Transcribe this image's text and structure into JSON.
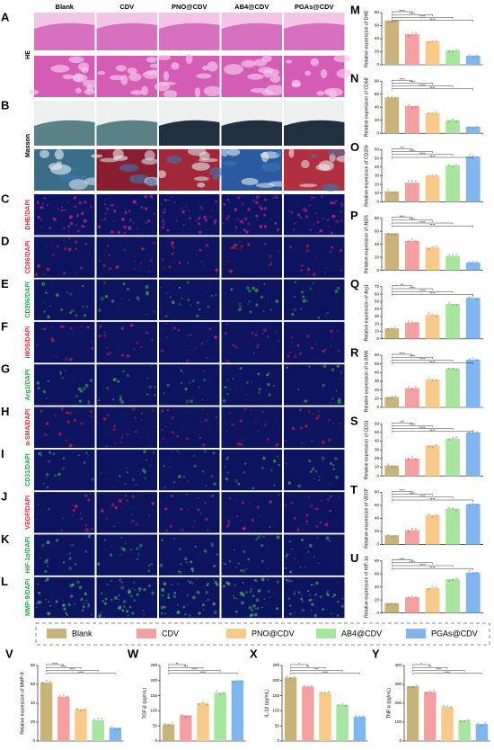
{
  "legend": [
    {
      "name": "Blank",
      "color": "#c8b47a"
    },
    {
      "name": "CDV",
      "color": "#f4a0a0"
    },
    {
      "name": "PNO@CDV",
      "color": "#f9c98a"
    },
    {
      "name": "AB4@CDV",
      "color": "#a8e6a0"
    },
    {
      "name": "PGAs@CDV",
      "color": "#7fb6f0"
    }
  ],
  "image_panel": {
    "columns": [
      "Blank",
      "CDV",
      "PNO@CDV",
      "AB4@CDV",
      "PGAs@CDV"
    ],
    "rows": [
      {
        "letter": "A",
        "label": "HE",
        "color": "#000000"
      },
      {
        "letter": "B",
        "label": "Masson",
        "color": "#000000"
      },
      {
        "letter": "C",
        "label": "DHE/DAPI",
        "color": "#e0303a"
      },
      {
        "letter": "D",
        "label": "CD86/DAPI",
        "color": "#e0303a"
      },
      {
        "letter": "E",
        "label": "CD206/DAPI",
        "color": "#2aa34a"
      },
      {
        "letter": "F",
        "label": "iNOS/DAPI",
        "color": "#e0303a"
      },
      {
        "letter": "G",
        "label": "Arg1/DAPI",
        "color": "#2aa34a"
      },
      {
        "letter": "H",
        "label": "α-SMA/DAPI",
        "color": "#e0303a"
      },
      {
        "letter": "I",
        "label": "CD31/DAPI",
        "color": "#2aa34a"
      },
      {
        "letter": "J",
        "label": "VEGF/DAPI",
        "color": "#e0303a"
      },
      {
        "letter": "K",
        "label": "HIF-1α/DAPI",
        "color": "#2aa34a"
      },
      {
        "letter": "L",
        "label": "MMP-9/DAPI",
        "color": "#2aa34a"
      }
    ]
  },
  "chart_data": [
    {
      "type": "bar",
      "label": "M",
      "ylabel": "Relative expression of DHE",
      "values": [
        68,
        47,
        36,
        22,
        14
      ],
      "ylim": [
        0,
        80
      ],
      "yticks": [
        0,
        20,
        40,
        60,
        80
      ],
      "significance": [
        "****",
        "****",
        "****",
        "****"
      ]
    },
    {
      "type": "bar",
      "label": "N",
      "ylabel": "Relative expression of CD68",
      "values": [
        55,
        42,
        31,
        20,
        10
      ],
      "ylim": [
        0,
        80
      ],
      "yticks": [
        0,
        20,
        40,
        60,
        80
      ],
      "significance": [
        "****",
        "****",
        "****",
        "****"
      ]
    },
    {
      "type": "bar",
      "label": "O",
      "ylabel": "Relative expression of CD206",
      "values": [
        12,
        22,
        30,
        42,
        52
      ],
      "ylim": [
        0,
        60
      ],
      "yticks": [
        0,
        10,
        20,
        30,
        40,
        50,
        60
      ],
      "significance": [
        "***",
        "****",
        "****",
        "****"
      ]
    },
    {
      "type": "bar",
      "label": "P",
      "ylabel": "Relative expression of iNOS",
      "values": [
        57,
        45,
        35,
        22,
        12
      ],
      "ylim": [
        0,
        80
      ],
      "yticks": [
        0,
        20,
        40,
        60,
        80
      ],
      "significance": [
        "****",
        "****",
        "****",
        "****"
      ]
    },
    {
      "type": "bar",
      "label": "Q",
      "ylabel": "Relative expression of Arg1",
      "values": [
        14,
        22,
        32,
        47,
        55
      ],
      "ylim": [
        0,
        70
      ],
      "yticks": [
        0,
        10,
        20,
        30,
        40,
        50,
        60,
        70
      ],
      "significance": [
        "**",
        "****",
        "****",
        "****"
      ]
    },
    {
      "type": "bar",
      "label": "R",
      "ylabel": "Relative expression of α-SMA",
      "values": [
        12,
        22,
        32,
        45,
        55
      ],
      "ylim": [
        0,
        60
      ],
      "yticks": [
        0,
        10,
        20,
        30,
        40,
        50,
        60
      ],
      "significance": [
        "****",
        "****",
        "****",
        "****"
      ]
    },
    {
      "type": "bar",
      "label": "S",
      "ylabel": "Relative expression of CD31",
      "values": [
        12,
        20,
        35,
        43,
        50
      ],
      "ylim": [
        0,
        60
      ],
      "yticks": [
        0,
        10,
        20,
        30,
        40,
        50,
        60
      ],
      "significance": [
        "***",
        "****",
        "****",
        "****"
      ]
    },
    {
      "type": "bar",
      "label": "T",
      "ylabel": "Relative expression of VEGF",
      "values": [
        14,
        22,
        45,
        55,
        62
      ],
      "ylim": [
        0,
        80
      ],
      "yticks": [
        0,
        20,
        40,
        60,
        80
      ],
      "significance": [
        "****",
        "****",
        "****",
        "****"
      ]
    },
    {
      "type": "bar",
      "label": "U",
      "ylabel": "Relative expression of HIF-1α",
      "values": [
        15,
        24,
        38,
        52,
        62
      ],
      "ylim": [
        0,
        80
      ],
      "yticks": [
        0,
        20,
        40,
        60,
        80
      ],
      "significance": [
        "****",
        "****",
        "****",
        "****"
      ]
    },
    {
      "type": "bar",
      "label": "V",
      "ylabel": "Relative expression of MMP-9",
      "values": [
        62,
        47,
        34,
        22,
        14
      ],
      "ylim": [
        0,
        80
      ],
      "yticks": [
        0,
        20,
        40,
        60,
        80
      ],
      "significance": [
        "****",
        "****",
        "****",
        "****"
      ]
    },
    {
      "type": "bar",
      "label": "W",
      "ylabel": "TGF-β (pg/mL)",
      "values": [
        55,
        85,
        125,
        160,
        200
      ],
      "ylim": [
        0,
        250
      ],
      "yticks": [
        0,
        50,
        100,
        150,
        200,
        250
      ],
      "significance": [
        "**",
        "***",
        "****",
        "****"
      ]
    },
    {
      "type": "bar",
      "label": "X",
      "ylabel": "IL-1β (pg/mL)",
      "values": [
        210,
        180,
        160,
        120,
        80
      ],
      "ylim": [
        0,
        250
      ],
      "yticks": [
        0,
        50,
        100,
        150,
        200,
        250
      ],
      "significance": [
        "*",
        "**",
        "***",
        "****"
      ]
    },
    {
      "type": "bar",
      "label": "Y",
      "ylabel": "TNF-α (pg/mL)",
      "values": [
        290,
        260,
        180,
        110,
        90
      ],
      "ylim": [
        0,
        400
      ],
      "yticks": [
        0,
        100,
        200,
        300,
        400
      ],
      "significance": [
        "*",
        "**",
        "****",
        "****"
      ]
    }
  ]
}
